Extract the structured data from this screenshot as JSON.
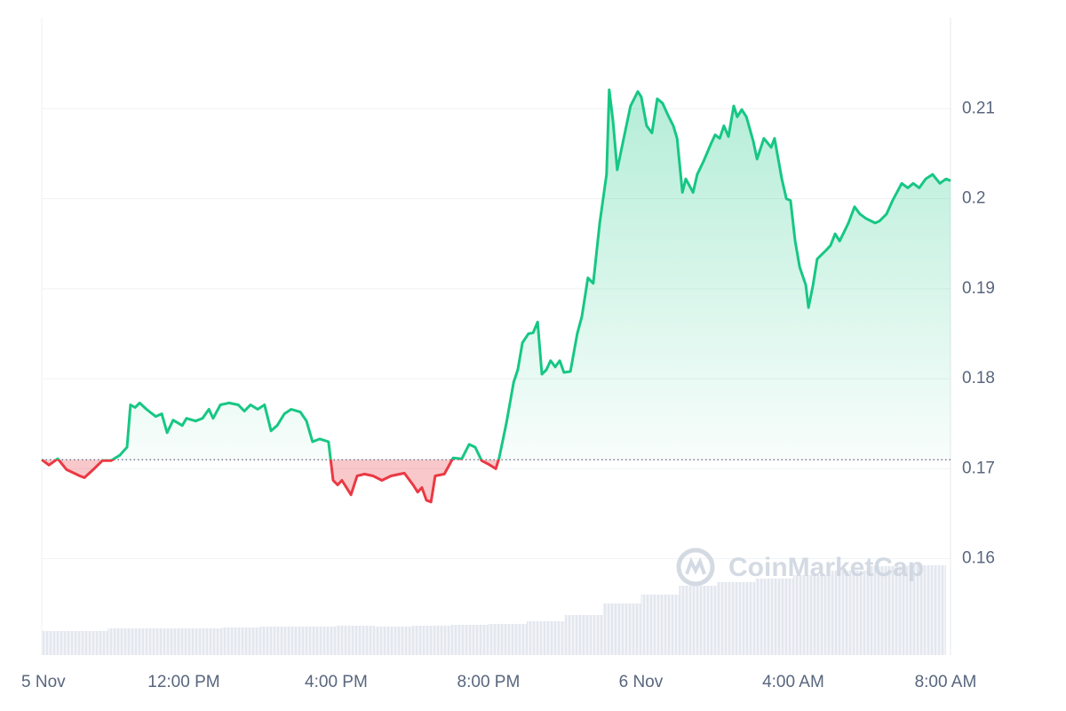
{
  "chart_data": {
    "type": "line",
    "watermark": "CoinMarketCap",
    "x": [
      8.27,
      8.46,
      8.69,
      8.92,
      9.27,
      9.39,
      9.62,
      9.86,
      10.09,
      10.32,
      10.51,
      10.6,
      10.72,
      10.84,
      11.02,
      11.26,
      11.42,
      11.56,
      11.72,
      11.96,
      12.07,
      12.31,
      12.49,
      12.66,
      12.77,
      12.96,
      13.19,
      13.43,
      13.59,
      13.75,
      13.94,
      14.12,
      14.29,
      14.45,
      14.64,
      14.82,
      15.06,
      15.22,
      15.38,
      15.57,
      15.8,
      15.92,
      16.04,
      16.15,
      16.39,
      16.55,
      16.74,
      16.97,
      17.2,
      17.44,
      17.79,
      18.02,
      18.14,
      18.25,
      18.37,
      18.49,
      18.6,
      18.84,
      19.07,
      19.3,
      19.49,
      19.65,
      19.82,
      20.0,
      20.19,
      20.28,
      20.47,
      20.66,
      20.77,
      20.89,
      21.05,
      21.17,
      21.29,
      21.4,
      21.52,
      21.63,
      21.75,
      21.87,
      21.98,
      22.15,
      22.33,
      22.45,
      22.61,
      22.75,
      22.92,
      23.1,
      23.17,
      23.27,
      23.38,
      23.5,
      23.62,
      23.73,
      23.92,
      24.01,
      24.15,
      24.29,
      24.43,
      24.57,
      24.71,
      24.85,
      24.95,
      25.09,
      25.18,
      25.37,
      25.48,
      25.65,
      25.83,
      25.95,
      26.07,
      26.18,
      26.3,
      26.44,
      26.53,
      26.65,
      26.77,
      26.95,
      27.05,
      27.23,
      27.42,
      27.51,
      27.7,
      27.82,
      27.93,
      28.05,
      28.17,
      28.33,
      28.4,
      28.52,
      28.63,
      28.75,
      28.87,
      28.98,
      29.1,
      29.22,
      29.45,
      29.61,
      29.75,
      29.91,
      30.15,
      30.26,
      30.45,
      30.61,
      30.85,
      31.01,
      31.15,
      31.31,
      31.48,
      31.66,
      31.85,
      32.01,
      32.13
    ],
    "values": [
      0.171,
      0.1704,
      0.1711,
      0.1699,
      0.1692,
      0.169,
      0.1699,
      0.1709,
      0.1709,
      0.1715,
      0.1724,
      0.1771,
      0.1768,
      0.1773,
      0.1766,
      0.1758,
      0.1761,
      0.174,
      0.1754,
      0.1748,
      0.1756,
      0.1753,
      0.1756,
      0.1766,
      0.1756,
      0.1771,
      0.1773,
      0.1771,
      0.1764,
      0.1771,
      0.1766,
      0.1771,
      0.1742,
      0.1748,
      0.1761,
      0.1766,
      0.1763,
      0.1753,
      0.173,
      0.1733,
      0.173,
      0.1687,
      0.1682,
      0.1687,
      0.1671,
      0.1692,
      0.1694,
      0.1692,
      0.1687,
      0.1692,
      0.1695,
      0.1682,
      0.1674,
      0.1679,
      0.1665,
      0.1663,
      0.1692,
      0.1694,
      0.1712,
      0.1711,
      0.1727,
      0.1724,
      0.1709,
      0.1705,
      0.17,
      0.1712,
      0.1751,
      0.1796,
      0.181,
      0.184,
      0.185,
      0.1851,
      0.1863,
      0.1805,
      0.181,
      0.182,
      0.1813,
      0.182,
      0.1807,
      0.1808,
      0.185,
      0.1869,
      0.1912,
      0.1906,
      0.1973,
      0.2027,
      0.2121,
      0.2086,
      0.2032,
      0.2057,
      0.2081,
      0.2103,
      0.2119,
      0.2113,
      0.2081,
      0.2073,
      0.2111,
      0.2106,
      0.2093,
      0.2081,
      0.2067,
      0.2007,
      0.2022,
      0.2007,
      0.2027,
      0.2042,
      0.206,
      0.2071,
      0.2067,
      0.2081,
      0.2069,
      0.2103,
      0.2091,
      0.2099,
      0.2091,
      0.2064,
      0.2044,
      0.2067,
      0.2057,
      0.2067,
      0.2022,
      0.2,
      0.1998,
      0.1953,
      0.1924,
      0.1904,
      0.1879,
      0.1904,
      0.1933,
      0.1938,
      0.1943,
      0.1948,
      0.1961,
      0.1953,
      0.1973,
      0.1991,
      0.1983,
      0.1978,
      0.1973,
      0.1975,
      0.1983,
      0.1998,
      0.2017,
      0.2012,
      0.2017,
      0.2012,
      0.2022,
      0.2027,
      0.2017,
      0.2022,
      0.202
    ],
    "baseline": 0.171,
    "up_color": "#16c784",
    "down_color": "#ea3943",
    "volume": {
      "x": [
        9,
        10,
        11,
        12,
        13,
        14,
        15,
        16,
        17,
        18,
        19,
        20,
        21,
        22,
        23,
        24,
        25,
        26,
        27,
        28,
        29,
        30,
        31,
        32
      ],
      "values": [
        27,
        27,
        30,
        30,
        30,
        31,
        32,
        32,
        33,
        32,
        33,
        34,
        35,
        38,
        45,
        58,
        68,
        78,
        82,
        86,
        90,
        95,
        100,
        101
      ],
      "color": "#e9ecf1"
    },
    "xlim": [
      8.27,
      32.13
    ],
    "ylim": [
      0.1493,
      0.2201
    ],
    "xticks": [
      {
        "value": 8.27,
        "label": "5 Nov"
      },
      {
        "value": 12,
        "label": "12:00 PM"
      },
      {
        "value": 16,
        "label": "4:00 PM"
      },
      {
        "value": 20,
        "label": "8:00 PM"
      },
      {
        "value": 24,
        "label": "6 Nov"
      },
      {
        "value": 28,
        "label": "4:00 AM"
      },
      {
        "value": 32,
        "label": "8:00 AM"
      }
    ],
    "yticks": [
      0.16,
      0.17,
      0.18,
      0.19,
      0.2,
      0.21
    ],
    "grid": true
  }
}
